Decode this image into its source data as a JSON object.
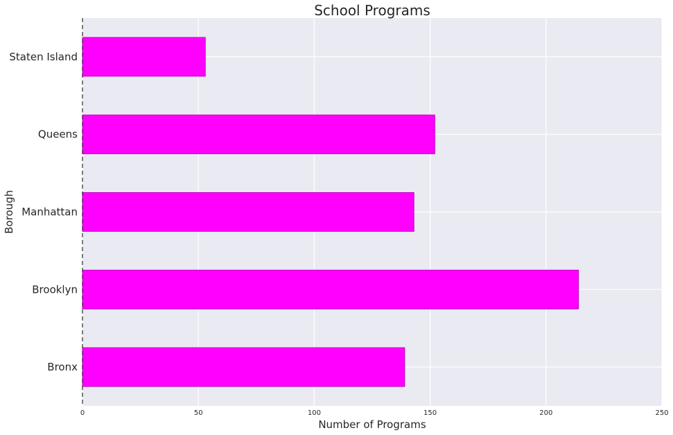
{
  "chart_data": {
    "type": "bar",
    "orientation": "horizontal",
    "title": "School Programs",
    "xlabel": "Number of Programs",
    "ylabel": "Borough",
    "categories": [
      "Bronx",
      "Brooklyn",
      "Manhattan",
      "Queens",
      "Staten Island"
    ],
    "values": [
      139,
      214,
      143,
      152,
      53
    ],
    "xlim": [
      0,
      250
    ],
    "xticks": [
      "0",
      "50",
      "100",
      "150",
      "200",
      "250"
    ],
    "grid": true,
    "bar_color": "#ff00ff",
    "bar_edge_color": "#c000c0",
    "plot_background": "#eaeaf2",
    "grid_color": "#ffffff"
  }
}
